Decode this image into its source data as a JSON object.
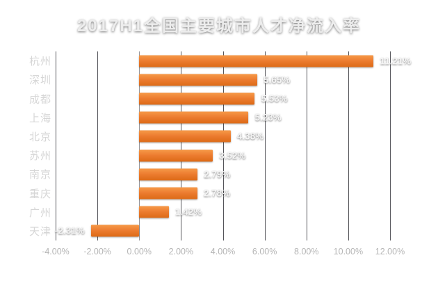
{
  "title": "2017H1全国主要城市人才净流入率",
  "colors": {
    "background_center": "#4b4b4e",
    "background_edge": "#232326",
    "title_text": "#ededed",
    "category_text": "#d6d6d6",
    "value_text": "#f5f5f5",
    "tick_text": "#b5b5b5",
    "gridline": "#55555a",
    "zero_line": "#97979b",
    "bar": "#ed7d31",
    "bar_top": "#f69a48",
    "bar_bottom": "#dc6a16"
  },
  "chart_data": {
    "type": "bar",
    "orientation": "horizontal",
    "title": "2017H1全国主要城市人才净流入率",
    "categories": [
      "杭州",
      "深圳",
      "成都",
      "上海",
      "北京",
      "苏州",
      "南京",
      "重庆",
      "广州",
      "天津"
    ],
    "values": [
      11.21,
      5.65,
      5.53,
      5.23,
      4.38,
      3.52,
      2.79,
      2.78,
      1.42,
      -2.31
    ],
    "value_labels": [
      "11.21%",
      "5.65%",
      "5.53%",
      "5.23%",
      "4.38%",
      "3.52%",
      "2.79%",
      "2.78%",
      "1.42%",
      "-2.31%"
    ],
    "unit": "%",
    "xlim": [
      -4,
      12
    ],
    "tick_values": [
      -4,
      -2,
      0,
      2,
      4,
      6,
      8,
      10,
      12
    ],
    "tick_labels": [
      "-4.00%",
      "-2.00%",
      "0.00%",
      "2.00%",
      "4.00%",
      "6.00%",
      "8.00%",
      "10.00%",
      "12.00%"
    ],
    "grid": "vertical-only",
    "legend": "none",
    "xlabel": "",
    "ylabel": ""
  }
}
